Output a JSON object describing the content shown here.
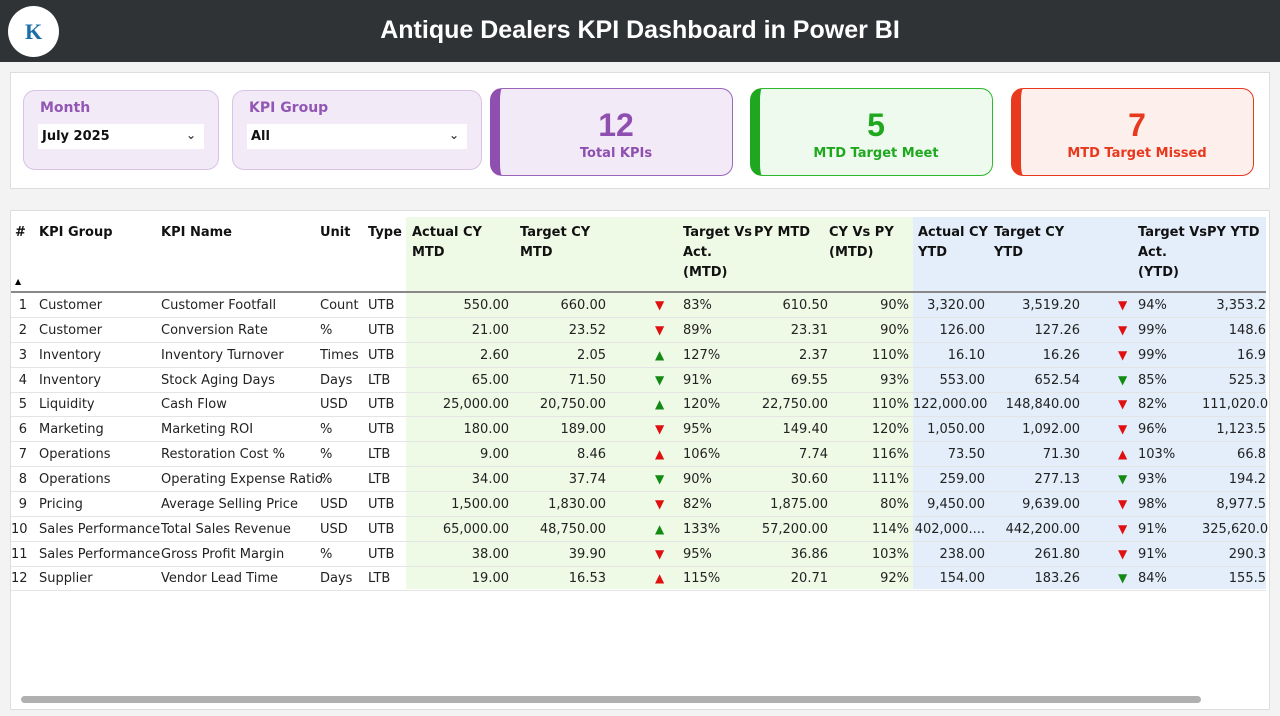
{
  "header": {
    "title": "Antique Dealers KPI Dashboard in Power BI",
    "logo_text": "K"
  },
  "slicers": {
    "month": {
      "label": "Month",
      "value": "July 2025"
    },
    "kpi_group": {
      "label": "KPI Group",
      "value": "All"
    }
  },
  "cards": [
    {
      "value": "12",
      "label": "Total KPIs",
      "color": "#8e4fb0"
    },
    {
      "value": "5",
      "label": "MTD Target Meet",
      "color": "#1fa81f"
    },
    {
      "value": "7",
      "label": "MTD Target Missed",
      "color": "#e8391f"
    }
  ],
  "table": {
    "headers": [
      "#",
      "KPI Group",
      "KPI Name",
      "Unit",
      "Type",
      "Actual CY MTD",
      "Target CY MTD",
      "Target Vs Act. (MTD)",
      "PY MTD",
      "CY Vs PY (MTD)",
      "Actual CY YTD",
      "Target CY YTD",
      "Target Vs Act. (YTD)",
      "PY YTD"
    ],
    "rows": [
      [
        "1",
        "Customer",
        "Customer Footfall",
        "Count",
        "UTB",
        "550.00",
        "660.00",
        "down-red",
        "83%",
        "610.50",
        "90%",
        "3,320.00",
        "3,519.20",
        "down-red",
        "94%",
        "3,353.2"
      ],
      [
        "2",
        "Customer",
        "Conversion Rate",
        "%",
        "UTB",
        "21.00",
        "23.52",
        "down-red",
        "89%",
        "23.31",
        "90%",
        "126.00",
        "127.26",
        "down-red",
        "99%",
        "148.6"
      ],
      [
        "3",
        "Inventory",
        "Inventory Turnover",
        "Times",
        "UTB",
        "2.60",
        "2.05",
        "up-green",
        "127%",
        "2.37",
        "110%",
        "16.10",
        "16.26",
        "down-red",
        "99%",
        "16.9"
      ],
      [
        "4",
        "Inventory",
        "Stock Aging Days",
        "Days",
        "LTB",
        "65.00",
        "71.50",
        "down-green",
        "91%",
        "69.55",
        "93%",
        "553.00",
        "652.54",
        "down-green",
        "85%",
        "525.3"
      ],
      [
        "5",
        "Liquidity",
        "Cash Flow",
        "USD",
        "UTB",
        "25,000.00",
        "20,750.00",
        "up-green",
        "120%",
        "22,750.00",
        "110%",
        "122,000.00",
        "148,840.00",
        "down-red",
        "82%",
        "111,020.0"
      ],
      [
        "6",
        "Marketing",
        "Marketing ROI",
        "%",
        "UTB",
        "180.00",
        "189.00",
        "down-red",
        "95%",
        "149.40",
        "120%",
        "1,050.00",
        "1,092.00",
        "down-red",
        "96%",
        "1,123.5"
      ],
      [
        "7",
        "Operations",
        "Restoration Cost %",
        "%",
        "LTB",
        "9.00",
        "8.46",
        "up-red",
        "106%",
        "7.74",
        "116%",
        "73.50",
        "71.30",
        "up-red",
        "103%",
        "66.8"
      ],
      [
        "8",
        "Operations",
        "Operating Expense Ratio",
        "%",
        "LTB",
        "34.00",
        "37.74",
        "down-green",
        "90%",
        "30.60",
        "111%",
        "259.00",
        "277.13",
        "down-green",
        "93%",
        "194.2"
      ],
      [
        "9",
        "Pricing",
        "Average Selling Price",
        "USD",
        "UTB",
        "1,500.00",
        "1,830.00",
        "down-red",
        "82%",
        "1,875.00",
        "80%",
        "9,450.00",
        "9,639.00",
        "down-red",
        "98%",
        "8,977.5"
      ],
      [
        "10",
        "Sales Performance",
        "Total Sales Revenue",
        "USD",
        "UTB",
        "65,000.00",
        "48,750.00",
        "up-green",
        "133%",
        "57,200.00",
        "114%",
        "402,000....",
        "442,200.00",
        "down-red",
        "91%",
        "325,620.0"
      ],
      [
        "11",
        "Sales Performance",
        "Gross Profit Margin",
        "%",
        "UTB",
        "38.00",
        "39.90",
        "down-red",
        "95%",
        "36.86",
        "103%",
        "238.00",
        "261.80",
        "down-red",
        "91%",
        "290.3"
      ],
      [
        "12",
        "Supplier",
        "Vendor Lead Time",
        "Days",
        "LTB",
        "19.00",
        "16.53",
        "up-red",
        "115%",
        "20.71",
        "92%",
        "154.00",
        "183.26",
        "down-green",
        "84%",
        "155.5"
      ]
    ]
  }
}
